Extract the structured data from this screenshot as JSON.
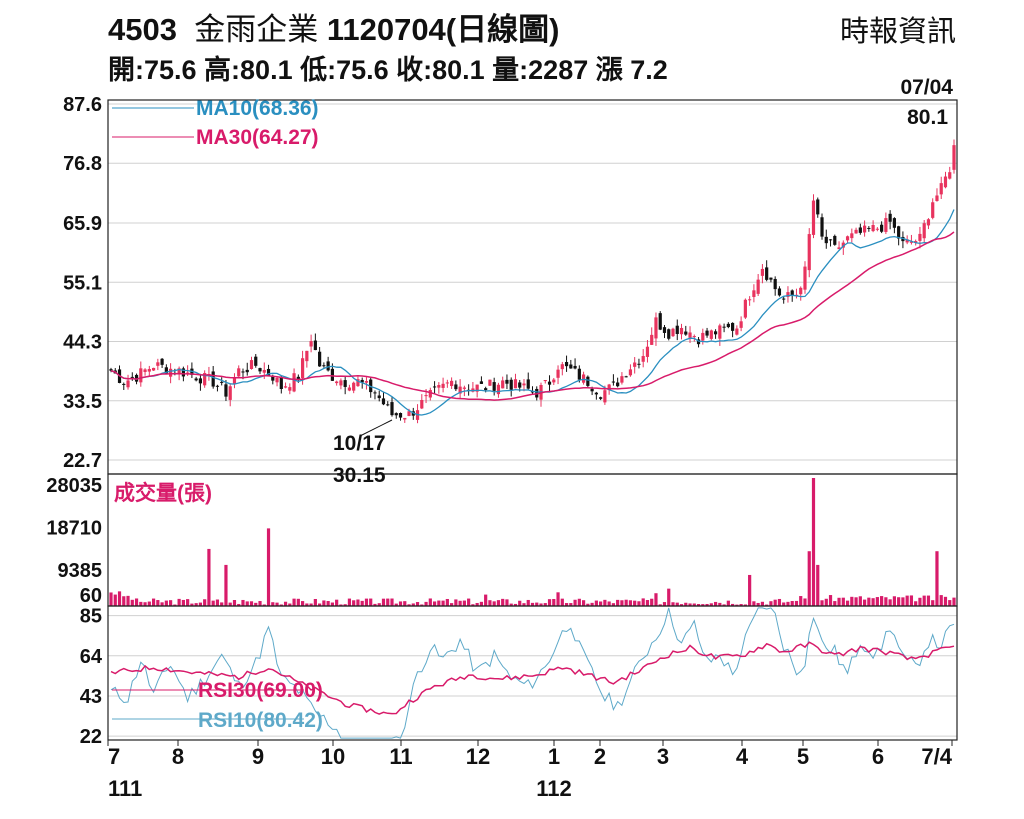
{
  "header": {
    "code": "4503",
    "name": "金雨企業",
    "date_label": "1120704(日線圖)",
    "source": "時報資訊",
    "ohlc_line": "開:75.6 高:80.1 低:75.6 收:80.1 量:2287 漲 7.2"
  },
  "colors": {
    "up": "#e8335e",
    "down": "#111111",
    "ma10": "#2a8fc0",
    "ma30": "#d81b6a",
    "volume": "#d81b6a",
    "rsi10": "#5ea9c9",
    "rsi30": "#d81b6a",
    "grid": "#d0d0d0"
  },
  "chart_data": [
    {
      "type": "candlestick",
      "panel": "price",
      "y_ticks": [
        "87.6",
        "76.8",
        "65.9",
        "55.1",
        "44.3",
        "33.5",
        "22.7"
      ],
      "ylim": [
        22.7,
        87.6
      ],
      "legend": [
        "MA10(68.36)",
        "MA30(64.27)"
      ],
      "annotations": [
        {
          "date": "07/04",
          "value": "80.1"
        },
        {
          "date": "10/17",
          "value": "30.15"
        }
      ],
      "anchors": [
        [
          0,
          39
        ],
        [
          3,
          37
        ],
        [
          6,
          38
        ],
        [
          10,
          40
        ],
        [
          16,
          39
        ],
        [
          20,
          38
        ],
        [
          24,
          37
        ],
        [
          27,
          35
        ],
        [
          30,
          39
        ],
        [
          34,
          40
        ],
        [
          38,
          38
        ],
        [
          40,
          36
        ],
        [
          44,
          38
        ],
        [
          47,
          45
        ],
        [
          49,
          40
        ],
        [
          52,
          38
        ],
        [
          55,
          37
        ],
        [
          58,
          37
        ],
        [
          62,
          35
        ],
        [
          64,
          33
        ],
        [
          66,
          31
        ],
        [
          68,
          31
        ],
        [
          70,
          31
        ],
        [
          73,
          33
        ],
        [
          76,
          35
        ],
        [
          80,
          37
        ],
        [
          84,
          36
        ],
        [
          88,
          36
        ],
        [
          92,
          37
        ],
        [
          96,
          36
        ],
        [
          100,
          35
        ],
        [
          103,
          37
        ],
        [
          105,
          40
        ],
        [
          108,
          39
        ],
        [
          110,
          38
        ],
        [
          112,
          37
        ],
        [
          115,
          35
        ],
        [
          118,
          36
        ],
        [
          121,
          39
        ],
        [
          125,
          42
        ],
        [
          128,
          48
        ],
        [
          131,
          46
        ],
        [
          134,
          47
        ],
        [
          138,
          45
        ],
        [
          142,
          46
        ],
        [
          147,
          47
        ],
        [
          150,
          53
        ],
        [
          153,
          58
        ],
        [
          156,
          54
        ],
        [
          158,
          52
        ],
        [
          161,
          53
        ],
        [
          163,
          57
        ],
        [
          165,
          70
        ],
        [
          167,
          63
        ],
        [
          170,
          61
        ],
        [
          173,
          63
        ],
        [
          176,
          64
        ],
        [
          180,
          65
        ],
        [
          183,
          66
        ],
        [
          186,
          62
        ],
        [
          190,
          63
        ],
        [
          193,
          70
        ],
        [
          195,
          72
        ],
        [
          197,
          76
        ],
        [
          198,
          80.1
        ]
      ],
      "ma10_last": 68.36,
      "ma30_last": 64.27
    },
    {
      "type": "bar",
      "panel": "volume",
      "title": "成交量(張)",
      "y_ticks": [
        "28035",
        "18710",
        "9385",
        "60"
      ],
      "ylim": [
        60,
        28035
      ],
      "spikes": [
        {
          "i": 23,
          "v": 12500
        },
        {
          "i": 27,
          "v": 9000
        },
        {
          "i": 37,
          "v": 17000
        },
        {
          "i": 88,
          "v": 2500
        },
        {
          "i": 105,
          "v": 3000
        },
        {
          "i": 128,
          "v": 2800
        },
        {
          "i": 131,
          "v": 3800
        },
        {
          "i": 150,
          "v": 6800
        },
        {
          "i": 164,
          "v": 12000
        },
        {
          "i": 165,
          "v": 28035
        },
        {
          "i": 166,
          "v": 9000
        },
        {
          "i": 194,
          "v": 12000
        }
      ]
    },
    {
      "type": "line",
      "panel": "rsi",
      "y_ticks": [
        "85",
        "64",
        "43",
        "22"
      ],
      "ylim": [
        20,
        90
      ],
      "legend": [
        "RSI30(69.00)",
        "RSI10(80.42)"
      ],
      "rsi10_anchors": [
        [
          0,
          45
        ],
        [
          4,
          42
        ],
        [
          7,
          62
        ],
        [
          10,
          44
        ],
        [
          14,
          60
        ],
        [
          18,
          42
        ],
        [
          22,
          52
        ],
        [
          26,
          64
        ],
        [
          30,
          48
        ],
        [
          34,
          60
        ],
        [
          37,
          78
        ],
        [
          40,
          52
        ],
        [
          44,
          46
        ],
        [
          48,
          34
        ],
        [
          52,
          28
        ],
        [
          56,
          18
        ],
        [
          60,
          14
        ],
        [
          64,
          10
        ],
        [
          68,
          22
        ],
        [
          70,
          38
        ],
        [
          72,
          55
        ],
        [
          75,
          68
        ],
        [
          78,
          62
        ],
        [
          82,
          72
        ],
        [
          86,
          55
        ],
        [
          90,
          64
        ],
        [
          94,
          52
        ],
        [
          98,
          48
        ],
        [
          102,
          58
        ],
        [
          105,
          72
        ],
        [
          108,
          82
        ],
        [
          110,
          68
        ],
        [
          113,
          55
        ],
        [
          116,
          42
        ],
        [
          119,
          38
        ],
        [
          122,
          50
        ],
        [
          125,
          64
        ],
        [
          128,
          74
        ],
        [
          131,
          88
        ],
        [
          134,
          70
        ],
        [
          137,
          80
        ],
        [
          140,
          60
        ],
        [
          143,
          65
        ],
        [
          146,
          54
        ],
        [
          149,
          72
        ],
        [
          152,
          88
        ],
        [
          155,
          92
        ],
        [
          158,
          70
        ],
        [
          161,
          56
        ],
        [
          163,
          62
        ],
        [
          165,
          86
        ],
        [
          167,
          70
        ],
        [
          170,
          66
        ],
        [
          173,
          54
        ],
        [
          176,
          72
        ],
        [
          180,
          64
        ],
        [
          183,
          80
        ],
        [
          186,
          62
        ],
        [
          189,
          58
        ],
        [
          192,
          72
        ],
        [
          195,
          70
        ],
        [
          198,
          80.42
        ]
      ],
      "rsi30_anchors": [
        [
          0,
          55
        ],
        [
          10,
          58
        ],
        [
          20,
          55
        ],
        [
          30,
          53
        ],
        [
          37,
          58
        ],
        [
          44,
          50
        ],
        [
          50,
          44
        ],
        [
          56,
          38
        ],
        [
          62,
          35
        ],
        [
          66,
          33
        ],
        [
          70,
          40
        ],
        [
          76,
          48
        ],
        [
          84,
          54
        ],
        [
          92,
          52
        ],
        [
          100,
          54
        ],
        [
          106,
          58
        ],
        [
          112,
          54
        ],
        [
          118,
          50
        ],
        [
          124,
          56
        ],
        [
          130,
          64
        ],
        [
          136,
          68
        ],
        [
          142,
          63
        ],
        [
          148,
          64
        ],
        [
          154,
          70
        ],
        [
          158,
          66
        ],
        [
          164,
          70
        ],
        [
          170,
          64
        ],
        [
          176,
          68
        ],
        [
          182,
          66
        ],
        [
          188,
          62
        ],
        [
          194,
          66
        ],
        [
          198,
          69.0
        ]
      ]
    }
  ],
  "x_axis": {
    "months": [
      "7",
      "8",
      "9",
      "10",
      "11",
      "12",
      "1",
      "2",
      "3",
      "4",
      "5",
      "6",
      "7/4"
    ],
    "years": [
      "111",
      "112"
    ]
  }
}
